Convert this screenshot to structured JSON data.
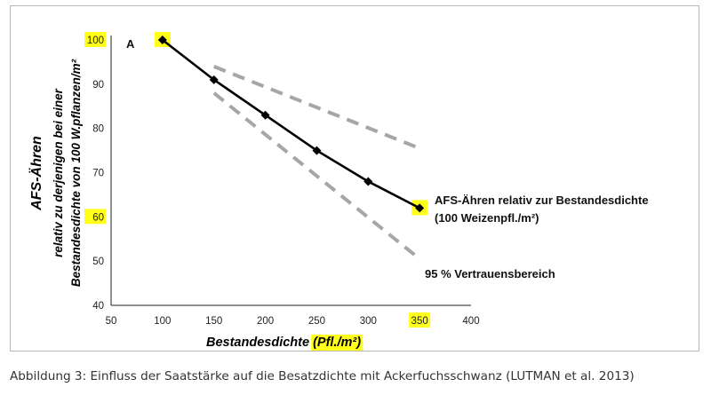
{
  "chart_data": {
    "type": "line",
    "panel_label": "A",
    "x_ticks": [
      50,
      100,
      150,
      200,
      250,
      300,
      350,
      400
    ],
    "y_ticks": [
      40,
      50,
      60,
      70,
      80,
      90,
      100
    ],
    "xlim": [
      50,
      400
    ],
    "ylim": [
      40,
      100
    ],
    "highlighted_ticks": {
      "x": [
        350
      ],
      "y": [
        100,
        60
      ]
    },
    "xlabel_main": "Bestandesdichte ",
    "xlabel_highlight": "(Pfl./m²)",
    "ylabel_lines": [
      "AFS-Ähren",
      "relativ zu derjenigen bei einer",
      "Bestandesdichte von 100 W.pflanzen/m²"
    ],
    "series": [
      {
        "line": "solid",
        "x": [
          100,
          150,
          200,
          250,
          300,
          350
        ],
        "y": [
          100,
          91,
          83,
          75,
          68,
          62
        ],
        "annotation": [
          "AFS-Ähren relativ zur Bestandesdichte",
          "(100 Weizenpfl./m²)"
        ]
      },
      {
        "line": "dashed-upper",
        "x": [
          150,
          350
        ],
        "y": [
          94,
          75.5
        ],
        "annotation": [
          "95 % Vertrauensbereich"
        ]
      },
      {
        "line": "dashed-lower",
        "x": [
          150,
          350
        ],
        "y": [
          88,
          50.5
        ]
      }
    ],
    "colors": {
      "line": "#000000",
      "confidence": "#a6a6a6",
      "highlight": "#ffff1a"
    },
    "grid": false,
    "legend": "none"
  },
  "caption": "Abbildung 3: Einfluss der Saatstärke auf die Besatzdichte mit Ackerfuchsschwanz (LUTMAN et al. 2013)"
}
